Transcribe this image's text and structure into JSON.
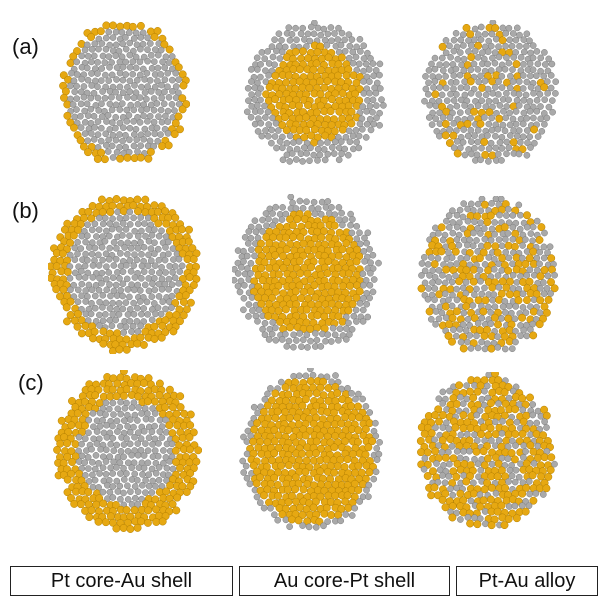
{
  "figure": {
    "row_labels": [
      "(a)",
      "(b)",
      "(c)"
    ],
    "column_labels": [
      "Pt core-Au shell",
      "Au core-Pt shell",
      "Pt-Au alloy"
    ],
    "colors": {
      "pt_atom": "#a9a9a9",
      "au_atom": "#e6a812"
    },
    "rows": [
      {
        "label": "(a)",
        "particles": [
          {
            "name": "pt-core-au-shell-a",
            "type": "core-shell",
            "core_element": "Pt",
            "shell_element": "Au",
            "shell_thickness": "thin"
          },
          {
            "name": "au-core-pt-shell-a",
            "type": "core-shell",
            "core_element": "Au",
            "shell_element": "Pt",
            "shell_thickness": "thick"
          },
          {
            "name": "pt-au-alloy-a",
            "type": "alloy",
            "au_fraction": 0.12
          }
        ]
      },
      {
        "label": "(b)",
        "particles": [
          {
            "name": "pt-core-au-shell-b",
            "type": "core-shell",
            "core_element": "Pt",
            "shell_element": "Au",
            "shell_thickness": "medium"
          },
          {
            "name": "au-core-pt-shell-b",
            "type": "core-shell",
            "core_element": "Au",
            "shell_element": "Pt",
            "shell_thickness": "medium"
          },
          {
            "name": "pt-au-alloy-b",
            "type": "alloy",
            "au_fraction": 0.35
          }
        ]
      },
      {
        "label": "(c)",
        "particles": [
          {
            "name": "pt-core-au-shell-c",
            "type": "core-shell",
            "core_element": "Pt",
            "shell_element": "Au",
            "shell_thickness": "thick"
          },
          {
            "name": "au-core-pt-shell-c",
            "type": "core-shell",
            "core_element": "Au",
            "shell_element": "Pt",
            "shell_thickness": "thin"
          },
          {
            "name": "pt-au-alloy-c",
            "type": "alloy",
            "au_fraction": 0.65
          }
        ]
      }
    ]
  }
}
